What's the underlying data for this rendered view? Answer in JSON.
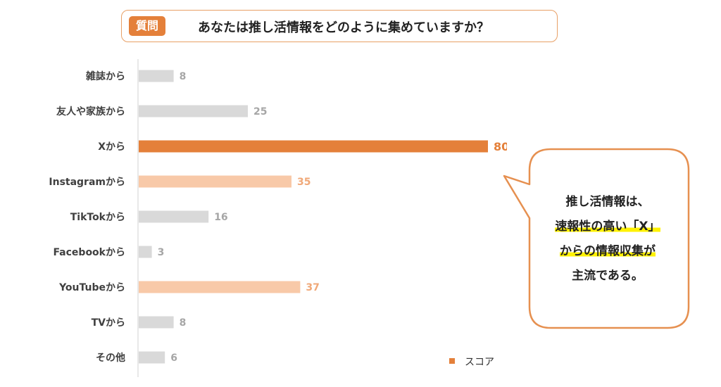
{
  "question": {
    "badge": "質問",
    "text": "あなたは推し活情報をどのように集めていますか？"
  },
  "callout": {
    "line1": "推し活情報は、",
    "line2": "速報性の高い「X」",
    "line3": "からの情報収集が",
    "line4": "主流である。"
  },
  "legend": {
    "label": "スコア"
  },
  "colors": {
    "highlight": "#e4803a",
    "secondary": "#f8c9a8",
    "secondary_label": "#f0a878",
    "default": "#d9d9d9",
    "default_label": "#a6a6a6",
    "callout_border": "#e69050"
  },
  "chart_data": {
    "type": "bar",
    "orientation": "horizontal",
    "categories": [
      "雑誌から",
      "友人や家族から",
      "Xから",
      "Instagramから",
      "TikTokから",
      "Facebookから",
      "YouTubeから",
      "TVから",
      "その他"
    ],
    "series": [
      {
        "name": "スコア",
        "values": [
          8,
          25,
          80,
          35,
          16,
          3,
          37,
          8,
          6
        ]
      }
    ],
    "emphasis": [
      "default",
      "default",
      "highlight",
      "secondary",
      "default",
      "default",
      "secondary",
      "default",
      "default"
    ],
    "xlim": [
      0,
      80
    ],
    "grid": false,
    "legend_position": "bottom-right"
  }
}
